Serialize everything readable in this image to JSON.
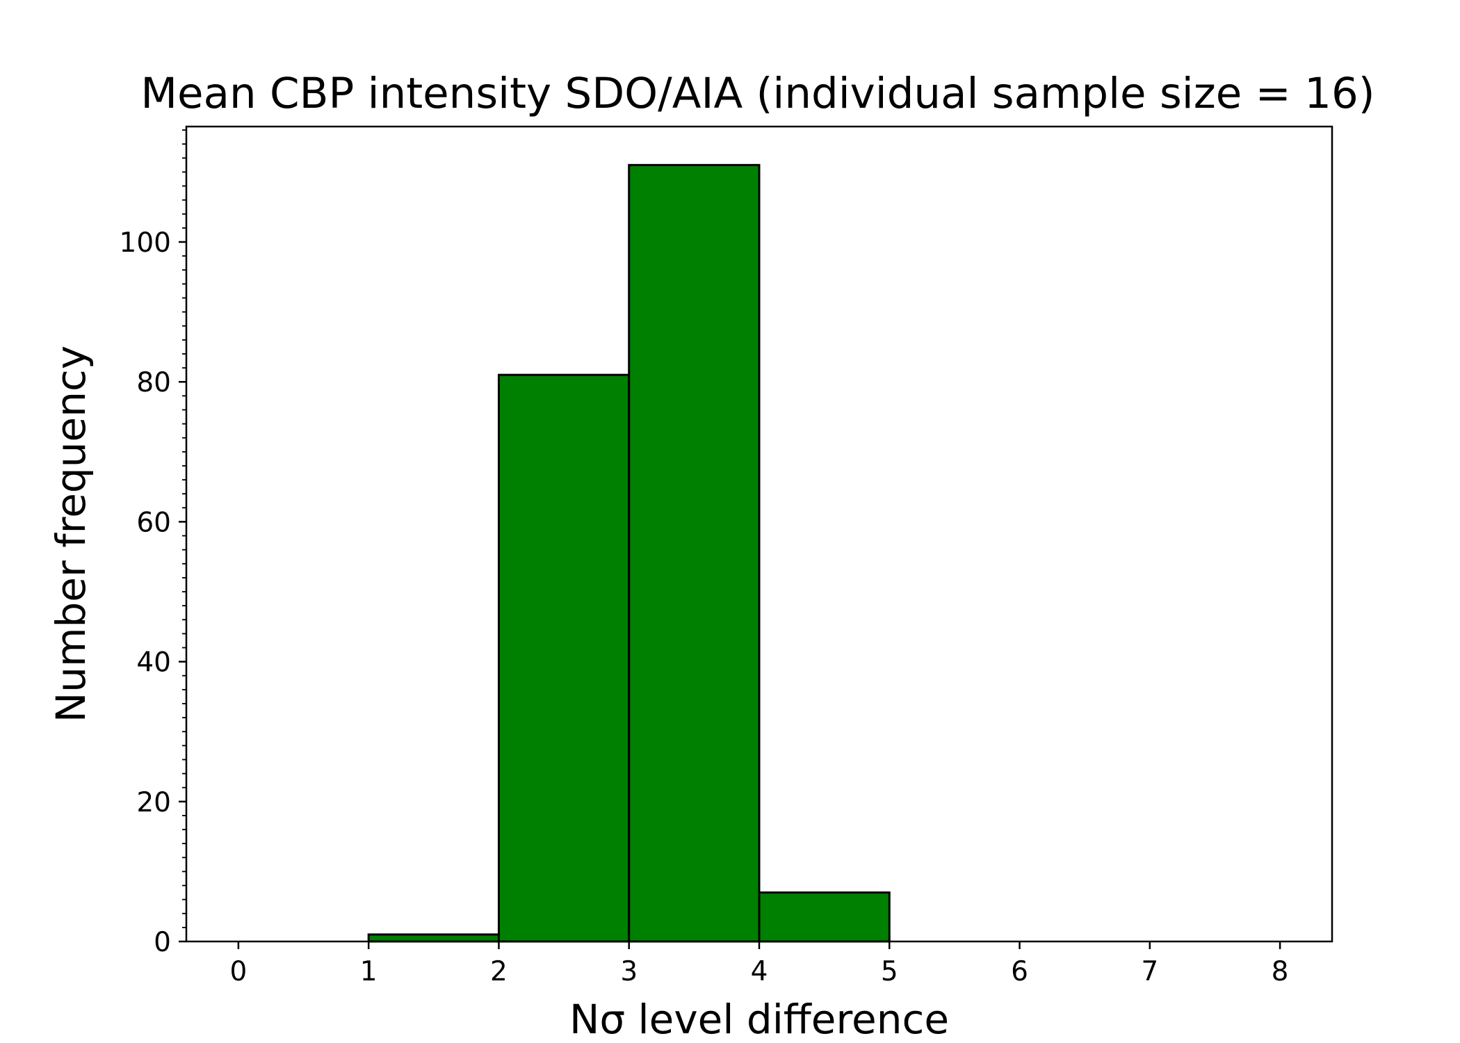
{
  "chart_data": {
    "type": "bar",
    "title": "Mean CBP intensity SDO/AIA (individual sample size = 16)",
    "xlabel": "Nσ level difference",
    "ylabel": "Number frequency",
    "bins": [
      {
        "start": 0,
        "end": 1,
        "value": 0
      },
      {
        "start": 1,
        "end": 2,
        "value": 1
      },
      {
        "start": 2,
        "end": 3,
        "value": 81
      },
      {
        "start": 3,
        "end": 4,
        "value": 111
      },
      {
        "start": 4,
        "end": 5,
        "value": 7
      },
      {
        "start": 5,
        "end": 6,
        "value": 0
      },
      {
        "start": 6,
        "end": 7,
        "value": 0
      },
      {
        "start": 7,
        "end": 8,
        "value": 0
      }
    ],
    "xticks": [
      "0",
      "1",
      "2",
      "3",
      "4",
      "5",
      "6",
      "7",
      "8"
    ],
    "yticks": [
      "0",
      "20",
      "40",
      "60",
      "80",
      "100"
    ],
    "xlim": [
      -0.4,
      8.4
    ],
    "ylim": [
      0,
      116.5
    ],
    "grid": false,
    "bar_color": "#008000",
    "edge_color": "#000000"
  }
}
